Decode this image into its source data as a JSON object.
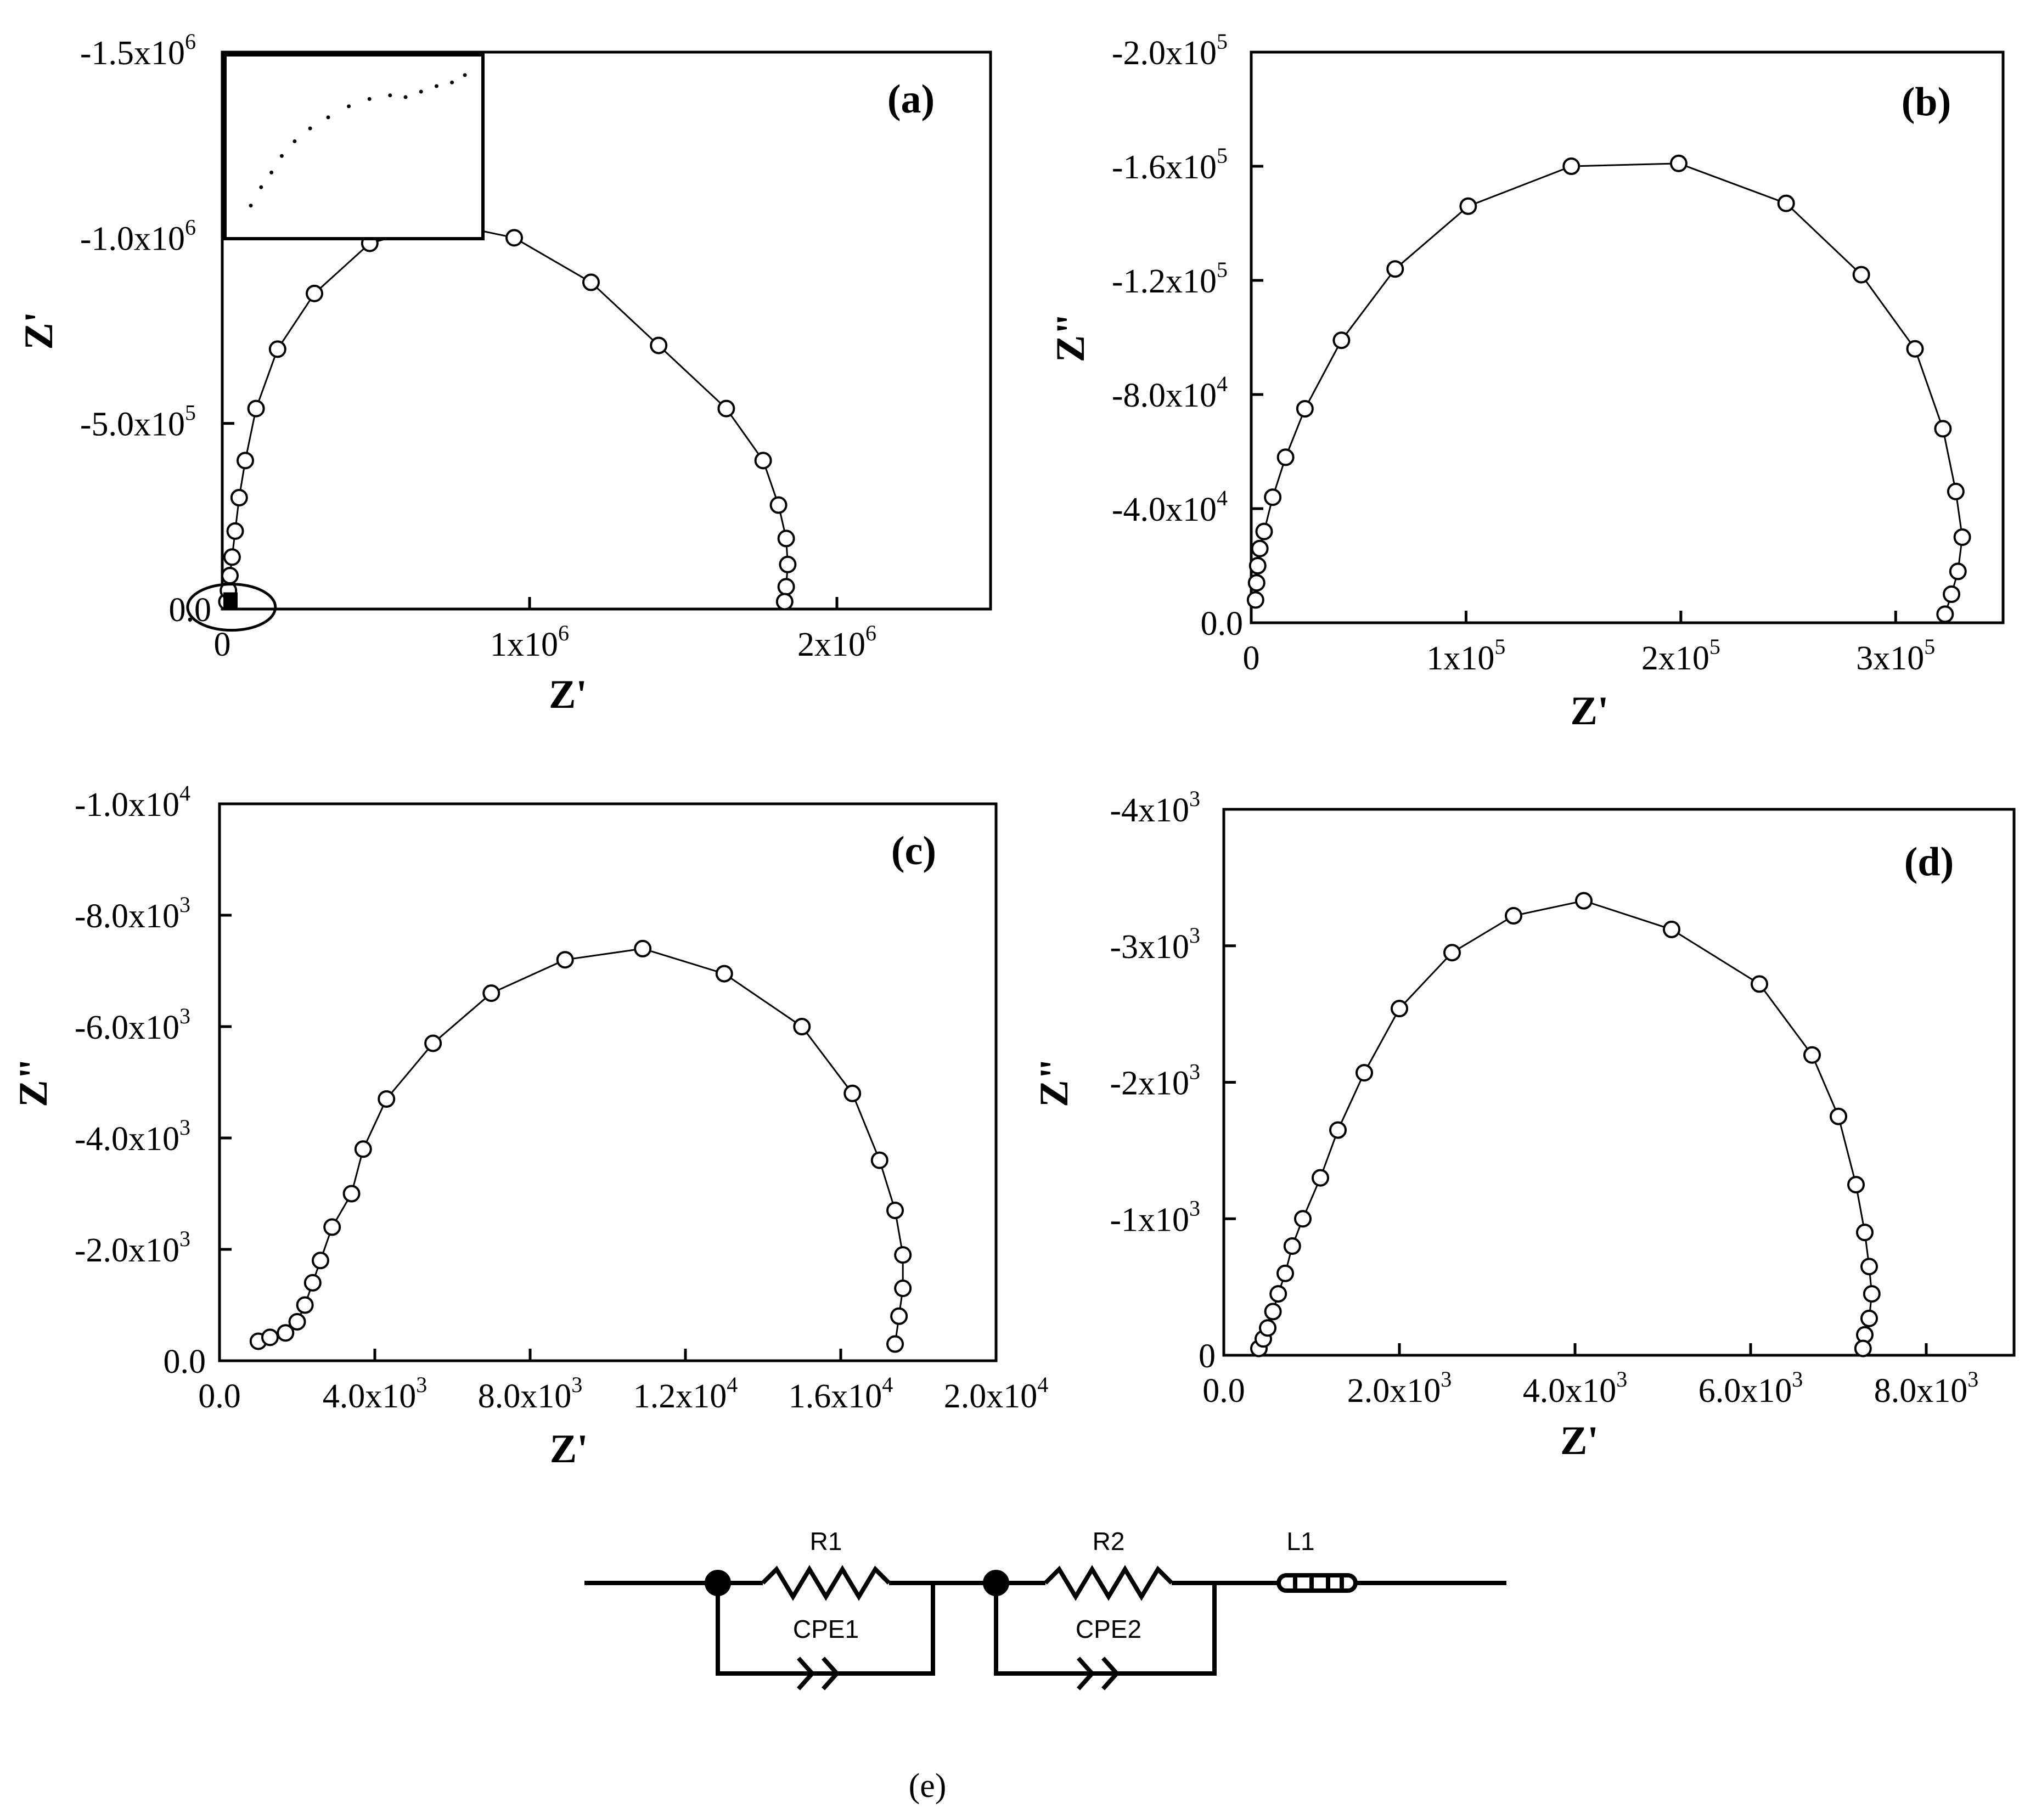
{
  "chart_data": [
    {
      "type": "scatter",
      "panel_label": "(a)",
      "xlabel": "Z'",
      "ylabel": "Z'",
      "xlim": [
        0,
        2500000
      ],
      "ylim": [
        0,
        -1500000
      ],
      "x_ticks": [
        {
          "v": 0,
          "t": "0"
        },
        {
          "v": 1000000,
          "t": "1x10",
          "e": "6"
        },
        {
          "v": 2000000,
          "t": "2x10",
          "e": "6"
        }
      ],
      "y_ticks": [
        {
          "v": 0,
          "t": "0.0"
        },
        {
          "v": -500000,
          "t": "-5.0x10",
          "e": "5"
        },
        {
          "v": -1000000,
          "t": "-1.0x10",
          "e": "6"
        },
        {
          "v": -1500000,
          "t": "-1.5x10",
          "e": "6"
        }
      ],
      "has_inset": true,
      "inset_points": [
        [
          0.1,
          0.82
        ],
        [
          0.14,
          0.72
        ],
        [
          0.18,
          0.64
        ],
        [
          0.22,
          0.55
        ],
        [
          0.27,
          0.47
        ],
        [
          0.33,
          0.4
        ],
        [
          0.4,
          0.34
        ],
        [
          0.48,
          0.28
        ],
        [
          0.56,
          0.24
        ],
        [
          0.64,
          0.22
        ],
        [
          0.7,
          0.23
        ],
        [
          0.76,
          0.2
        ],
        [
          0.82,
          0.17
        ],
        [
          0.88,
          0.15
        ],
        [
          0.93,
          0.11
        ]
      ],
      "has_circle_marker": true,
      "points": [
        [
          15000,
          -20000
        ],
        [
          20000,
          -50000
        ],
        [
          25000,
          -90000
        ],
        [
          32000,
          -140000
        ],
        [
          42000,
          -210000
        ],
        [
          55000,
          -300000
        ],
        [
          75000,
          -400000
        ],
        [
          110000,
          -540000
        ],
        [
          180000,
          -700000
        ],
        [
          300000,
          -850000
        ],
        [
          480000,
          -985000
        ],
        [
          720000,
          -1040000
        ],
        [
          950000,
          -1000000
        ],
        [
          1200000,
          -880000
        ],
        [
          1420000,
          -710000
        ],
        [
          1640000,
          -540000
        ],
        [
          1760000,
          -400000
        ],
        [
          1810000,
          -280000
        ],
        [
          1835000,
          -190000
        ],
        [
          1840000,
          -120000
        ],
        [
          1835000,
          -60000
        ],
        [
          1830000,
          -20000
        ]
      ]
    },
    {
      "type": "scatter",
      "panel_label": "(b)",
      "xlabel": "Z'",
      "ylabel": "Z\"",
      "xlim": [
        0,
        350000
      ],
      "ylim": [
        0,
        -200000
      ],
      "x_ticks": [
        {
          "v": 0,
          "t": "0"
        },
        {
          "v": 100000,
          "t": "1x10",
          "e": "5"
        },
        {
          "v": 200000,
          "t": "2x10",
          "e": "5"
        },
        {
          "v": 300000,
          "t": "3x10",
          "e": "5"
        }
      ],
      "y_ticks": [
        {
          "v": 0,
          "t": "0.0"
        },
        {
          "v": -40000,
          "t": "-4.0x10",
          "e": "4"
        },
        {
          "v": -80000,
          "t": "-8.0x10",
          "e": "4"
        },
        {
          "v": -120000,
          "t": "-1.2x10",
          "e": "5"
        },
        {
          "v": -160000,
          "t": "-1.6x10",
          "e": "5"
        },
        {
          "v": -200000,
          "t": "-2.0x10",
          "e": "5"
        }
      ],
      "points": [
        [
          2000,
          -8000
        ],
        [
          2500,
          -14000
        ],
        [
          3000,
          -20000
        ],
        [
          4000,
          -26000
        ],
        [
          6000,
          -32000
        ],
        [
          10000,
          -44000
        ],
        [
          16000,
          -58000
        ],
        [
          25000,
          -75000
        ],
        [
          42000,
          -99000
        ],
        [
          67000,
          -124000
        ],
        [
          101000,
          -146000
        ],
        [
          149000,
          -160000
        ],
        [
          199000,
          -161000
        ],
        [
          249000,
          -147000
        ],
        [
          284000,
          -122000
        ],
        [
          309000,
          -96000
        ],
        [
          322000,
          -68000
        ],
        [
          328000,
          -46000
        ],
        [
          331000,
          -30000
        ],
        [
          329000,
          -18000
        ],
        [
          326000,
          -10000
        ],
        [
          323000,
          -3000
        ]
      ]
    },
    {
      "type": "scatter",
      "panel_label": "(c)",
      "xlabel": "Z'",
      "ylabel": "Z\"",
      "xlim": [
        0,
        20000
      ],
      "ylim": [
        0,
        -10000
      ],
      "x_ticks": [
        {
          "v": 0,
          "t": "0.0"
        },
        {
          "v": 4000,
          "t": "4.0x10",
          "e": "3"
        },
        {
          "v": 8000,
          "t": "8.0x10",
          "e": "3"
        },
        {
          "v": 12000,
          "t": "1.2x10",
          "e": "4"
        },
        {
          "v": 16000,
          "t": "1.6x10",
          "e": "4"
        },
        {
          "v": 20000,
          "t": "2.0x10",
          "e": "4"
        }
      ],
      "y_ticks": [
        {
          "v": 0,
          "t": "0.0"
        },
        {
          "v": -2000,
          "t": "-2.0x10",
          "e": "3"
        },
        {
          "v": -4000,
          "t": "-4.0x10",
          "e": "3"
        },
        {
          "v": -6000,
          "t": "-6.0x10",
          "e": "3"
        },
        {
          "v": -8000,
          "t": "-8.0x10",
          "e": "3"
        },
        {
          "v": -10000,
          "t": "-1.0x10",
          "e": "4"
        }
      ],
      "points": [
        [
          1000,
          -350
        ],
        [
          1300,
          -420
        ],
        [
          1700,
          -500
        ],
        [
          2000,
          -700
        ],
        [
          2200,
          -1000
        ],
        [
          2400,
          -1400
        ],
        [
          2600,
          -1800
        ],
        [
          2900,
          -2400
        ],
        [
          3400,
          -3000
        ],
        [
          3700,
          -3800
        ],
        [
          4300,
          -4700
        ],
        [
          5500,
          -5700
        ],
        [
          7000,
          -6600
        ],
        [
          8900,
          -7200
        ],
        [
          10900,
          -7400
        ],
        [
          13000,
          -6950
        ],
        [
          15000,
          -6000
        ],
        [
          16300,
          -4800
        ],
        [
          17000,
          -3600
        ],
        [
          17400,
          -2700
        ],
        [
          17600,
          -1900
        ],
        [
          17600,
          -1300
        ],
        [
          17500,
          -800
        ],
        [
          17400,
          -300
        ]
      ]
    },
    {
      "type": "scatter",
      "panel_label": "(d)",
      "xlabel": "Z'",
      "ylabel": "Z\"",
      "xlim": [
        0,
        9000
      ],
      "ylim": [
        0,
        -4000
      ],
      "x_ticks": [
        {
          "v": 0,
          "t": "0.0"
        },
        {
          "v": 2000,
          "t": "2.0x10",
          "e": "3"
        },
        {
          "v": 4000,
          "t": "4.0x10",
          "e": "3"
        },
        {
          "v": 6000,
          "t": "6.0x10",
          "e": "3"
        },
        {
          "v": 8000,
          "t": "8.0x10",
          "e": "3"
        }
      ],
      "y_ticks": [
        {
          "v": 0,
          "t": "0"
        },
        {
          "v": -1000,
          "t": "-1x10",
          "e": "3"
        },
        {
          "v": -2000,
          "t": "-2x10",
          "e": "3"
        },
        {
          "v": -3000,
          "t": "-3x10",
          "e": "3"
        },
        {
          "v": -4000,
          "t": "-4x10",
          "e": "3"
        }
      ],
      "points": [
        [
          400,
          -50
        ],
        [
          450,
          -120
        ],
        [
          500,
          -200
        ],
        [
          560,
          -320
        ],
        [
          620,
          -450
        ],
        [
          700,
          -600
        ],
        [
          780,
          -800
        ],
        [
          900,
          -1000
        ],
        [
          1100,
          -1300
        ],
        [
          1300,
          -1650
        ],
        [
          1600,
          -2070
        ],
        [
          2000,
          -2540
        ],
        [
          2600,
          -2950
        ],
        [
          3300,
          -3220
        ],
        [
          4100,
          -3330
        ],
        [
          5100,
          -3120
        ],
        [
          6100,
          -2720
        ],
        [
          6700,
          -2200
        ],
        [
          7000,
          -1750
        ],
        [
          7200,
          -1250
        ],
        [
          7300,
          -900
        ],
        [
          7350,
          -650
        ],
        [
          7380,
          -450
        ],
        [
          7350,
          -270
        ],
        [
          7300,
          -150
        ],
        [
          7280,
          -50
        ]
      ]
    }
  ],
  "circuit": {
    "r1_label": "R1",
    "r2_label": "R2",
    "l1_label": "L1",
    "cpe1_label": "CPE1",
    "cpe2_label": "CPE2",
    "panel_label": "(e)"
  }
}
